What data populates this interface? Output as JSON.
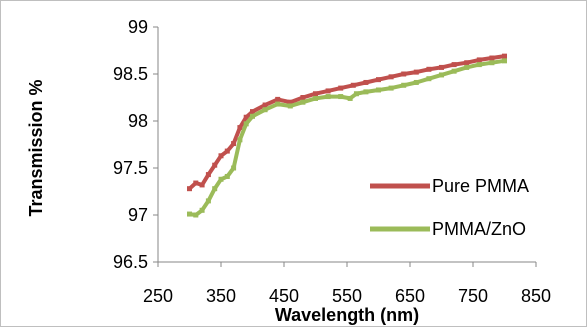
{
  "chart_data": {
    "type": "line",
    "title": "",
    "xlabel": "Wavelength (nm)",
    "ylabel": "Transmission %",
    "xlim": [
      250,
      850
    ],
    "ylim": [
      96.5,
      99
    ],
    "xticks": [
      250,
      350,
      450,
      550,
      650,
      750,
      850
    ],
    "yticks": [
      96.5,
      97,
      97.5,
      98,
      98.5,
      99
    ],
    "grid": false,
    "legend_position": "right",
    "series": [
      {
        "name": "Pure PMMA",
        "color": "#c0504d",
        "marker": "square",
        "x": [
          300,
          310,
          320,
          330,
          340,
          350,
          360,
          370,
          380,
          390,
          400,
          420,
          440,
          460,
          480,
          500,
          520,
          540,
          560,
          580,
          600,
          620,
          640,
          660,
          680,
          700,
          720,
          740,
          760,
          780,
          800
        ],
        "y": [
          97.28,
          97.34,
          97.32,
          97.43,
          97.53,
          97.63,
          97.68,
          97.76,
          97.93,
          98.04,
          98.1,
          98.17,
          98.23,
          98.2,
          98.25,
          98.29,
          98.32,
          98.35,
          98.38,
          98.41,
          98.44,
          98.47,
          98.5,
          98.52,
          98.55,
          98.57,
          98.6,
          98.62,
          98.65,
          98.67,
          98.69
        ]
      },
      {
        "name": "PMMA/ZnO",
        "color": "#9bbb59",
        "marker": "square",
        "x": [
          300,
          310,
          320,
          330,
          340,
          350,
          360,
          370,
          380,
          390,
          400,
          420,
          440,
          460,
          480,
          500,
          520,
          540,
          555,
          565,
          580,
          600,
          620,
          640,
          660,
          680,
          700,
          720,
          740,
          760,
          780,
          800
        ],
        "y": [
          97.01,
          97.0,
          97.05,
          97.15,
          97.28,
          97.38,
          97.41,
          97.5,
          97.8,
          97.97,
          98.05,
          98.12,
          98.18,
          98.16,
          98.2,
          98.24,
          98.26,
          98.26,
          98.24,
          98.29,
          98.31,
          98.33,
          98.35,
          98.38,
          98.41,
          98.45,
          98.49,
          98.53,
          98.57,
          98.6,
          98.62,
          98.64
        ]
      }
    ]
  }
}
